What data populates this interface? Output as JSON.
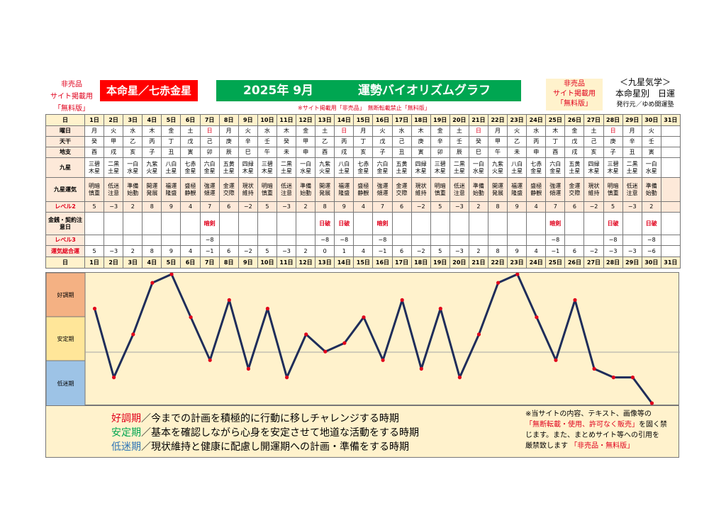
{
  "header": {
    "left_lines": [
      "非売品",
      "サイト掲載用",
      "「無料版」"
    ],
    "honmei": "本命星／七赤金星",
    "month": "2025年 9月",
    "title": "運勢バイオリズムグラフ",
    "right_lines": [
      "非売品",
      "サイト掲載用",
      "「無料版」"
    ],
    "kyusei_title": "＜九星気学＞",
    "kyusei_sub": "本命星別　日運",
    "publisher": "発行元／ゆめ開運塾",
    "notice": "※サイト掲載用「非売品」　無断転載禁止「無料版」"
  },
  "row_labels": {
    "day": "日",
    "weekday": "曜日",
    "tenkan": "天干",
    "chishi": "地支",
    "kyusei": "九星",
    "unki": "九星運気",
    "level2": "レベル2",
    "kinsen": "金銭・契約注意日",
    "level3": "レベル3",
    "total": "運気総合運"
  },
  "days": [
    "1日",
    "2日",
    "3日",
    "4日",
    "5日",
    "6日",
    "7日",
    "8日",
    "9日",
    "10日",
    "11日",
    "12日",
    "13日",
    "14日",
    "15日",
    "16日",
    "17日",
    "18日",
    "19日",
    "20日",
    "21日",
    "22日",
    "23日",
    "24日",
    "25日",
    "26日",
    "27日",
    "28日",
    "29日",
    "30日",
    "31日"
  ],
  "weekday": [
    "月",
    "火",
    "水",
    "木",
    "金",
    "土",
    "日",
    "月",
    "火",
    "水",
    "木",
    "金",
    "土",
    "日",
    "月",
    "火",
    "水",
    "木",
    "金",
    "土",
    "日",
    "月",
    "火",
    "水",
    "木",
    "金",
    "土",
    "日",
    "月",
    "火",
    ""
  ],
  "tenkan": [
    "癸",
    "甲",
    "乙",
    "丙",
    "丁",
    "戊",
    "己",
    "庚",
    "辛",
    "壬",
    "癸",
    "甲",
    "乙",
    "丙",
    "丁",
    "戊",
    "己",
    "庚",
    "辛",
    "壬",
    "癸",
    "甲",
    "乙",
    "丙",
    "丁",
    "戊",
    "己",
    "庚",
    "辛",
    "壬",
    ""
  ],
  "chishi": [
    "酉",
    "戌",
    "亥",
    "子",
    "丑",
    "寅",
    "卯",
    "辰",
    "巳",
    "午",
    "未",
    "申",
    "酉",
    "戌",
    "亥",
    "子",
    "丑",
    "寅",
    "卯",
    "辰",
    "巳",
    "午",
    "未",
    "申",
    "酉",
    "戌",
    "亥",
    "子",
    "丑",
    "寅",
    ""
  ],
  "kyusei": [
    [
      "三碧",
      "木星"
    ],
    [
      "二黒",
      "土星"
    ],
    [
      "一白",
      "水星"
    ],
    [
      "九紫",
      "火星"
    ],
    [
      "八白",
      "土星"
    ],
    [
      "七赤",
      "金星"
    ],
    [
      "六白",
      "金星"
    ],
    [
      "五黄",
      "土星"
    ],
    [
      "四緑",
      "木星"
    ],
    [
      "三碧",
      "木星"
    ],
    [
      "二黒",
      "土星"
    ],
    [
      "一白",
      "水星"
    ],
    [
      "九紫",
      "火星"
    ],
    [
      "八白",
      "土星"
    ],
    [
      "七赤",
      "金星"
    ],
    [
      "六白",
      "金星"
    ],
    [
      "五黄",
      "土星"
    ],
    [
      "四緑",
      "木星"
    ],
    [
      "三碧",
      "木星"
    ],
    [
      "二黒",
      "土星"
    ],
    [
      "一白",
      "水星"
    ],
    [
      "九紫",
      "火星"
    ],
    [
      "八白",
      "土星"
    ],
    [
      "七赤",
      "金星"
    ],
    [
      "六白",
      "金星"
    ],
    [
      "五黄",
      "土星"
    ],
    [
      "四緑",
      "木星"
    ],
    [
      "三碧",
      "木星"
    ],
    [
      "二黒",
      "土星"
    ],
    [
      "一白",
      "水星"
    ],
    [
      "",
      ""
    ]
  ],
  "unki": [
    [
      "明暗",
      "慎重"
    ],
    [
      "低迷",
      "注意"
    ],
    [
      "準備",
      "始動"
    ],
    [
      "開運",
      "発展"
    ],
    [
      "福運",
      "隆盛"
    ],
    [
      "盛極",
      "静観"
    ],
    [
      "強運",
      "傾運"
    ],
    [
      "金運",
      "交際"
    ],
    [
      "現状",
      "維持"
    ],
    [
      "明暗",
      "慎重"
    ],
    [
      "低迷",
      "注意"
    ],
    [
      "準備",
      "始動"
    ],
    [
      "開運",
      "発展"
    ],
    [
      "福運",
      "隆盛"
    ],
    [
      "盛極",
      "静観"
    ],
    [
      "強運",
      "傾運"
    ],
    [
      "金運",
      "交際"
    ],
    [
      "現状",
      "維持"
    ],
    [
      "明暗",
      "慎重"
    ],
    [
      "低迷",
      "注意"
    ],
    [
      "準備",
      "始動"
    ],
    [
      "開運",
      "発展"
    ],
    [
      "福運",
      "隆盛"
    ],
    [
      "盛極",
      "静観"
    ],
    [
      "強運",
      "傾運"
    ],
    [
      "金運",
      "交際"
    ],
    [
      "現状",
      "維持"
    ],
    [
      "明暗",
      "慎重"
    ],
    [
      "低迷",
      "注意"
    ],
    [
      "準備",
      "始動"
    ],
    [
      "",
      ""
    ]
  ],
  "level2": [
    "5",
    "−3",
    "2",
    "8",
    "9",
    "4",
    "7",
    "6",
    "−2",
    "5",
    "−3",
    "2",
    "8",
    "9",
    "4",
    "7",
    "6",
    "−2",
    "5",
    "−3",
    "2",
    "8",
    "9",
    "4",
    "7",
    "6",
    "−2",
    "5",
    "−3",
    "2",
    ""
  ],
  "kinsen": [
    "",
    "",
    "",
    "",
    "",
    "",
    "暗剣",
    "",
    "",
    "",
    "",
    "",
    "日破",
    "日破",
    "",
    "暗剣",
    "",
    "",
    "",
    "",
    "",
    "",
    "",
    "",
    "暗剣",
    "",
    "",
    "日破",
    "",
    "日破",
    ""
  ],
  "level3": [
    "",
    "",
    "",
    "",
    "",
    "",
    "−8",
    "",
    "",
    "",
    "",
    "",
    "−8",
    "−8",
    "",
    "−8",
    "",
    "",
    "",
    "",
    "",
    "",
    "",
    "",
    "−8",
    "",
    "",
    "−8",
    "",
    "−8",
    ""
  ],
  "total": [
    "5",
    "−3",
    "2",
    "8",
    "9",
    "4",
    "−1",
    "6",
    "−2",
    "5",
    "−3",
    "2",
    "0",
    "1",
    "4",
    "−1",
    "6",
    "−2",
    "5",
    "−3",
    "2",
    "8",
    "9",
    "4",
    "−1",
    "6",
    "−2",
    "−3",
    "−3",
    "−6",
    ""
  ],
  "chart_data": {
    "type": "line",
    "x": [
      "1日",
      "2日",
      "3日",
      "4日",
      "5日",
      "6日",
      "7日",
      "8日",
      "9日",
      "10日",
      "11日",
      "12日",
      "13日",
      "14日",
      "15日",
      "16日",
      "17日",
      "18日",
      "19日",
      "20日",
      "21日",
      "22日",
      "23日",
      "24日",
      "25日",
      "26日",
      "27日",
      "28日",
      "29日",
      "30日"
    ],
    "values": [
      5,
      -3,
      2,
      8,
      9,
      4,
      -1,
      6,
      -2,
      5,
      -3,
      2,
      0,
      1,
      4,
      -1,
      6,
      -2,
      5,
      -3,
      2,
      8,
      9,
      4,
      -1,
      6,
      -2,
      -3,
      -3,
      -6
    ],
    "ylim": [
      -6,
      9
    ],
    "bands": [
      "好調期",
      "安定期",
      "低迷期"
    ],
    "line_color": "#1f2d5a",
    "marker_color": "#e0001b"
  },
  "footer": {
    "good_label": "好調期",
    "good_text": "／今までの計画を積極的に行動に移しチャレンジする時期",
    "stable_label": "安定期",
    "stable_text": "／基本を確認しながら心身を安定させて地道な活動をする時期",
    "low_label": "低迷期",
    "low_text": "／現状維持と健康に配慮し開運期への計画・準備をする時期",
    "copy_1": "※当サイトの内容、テキスト、画像等の",
    "copy_2": "「無断転載・使用、許可なく販売」",
    "copy_3": "を固く禁",
    "copy_4": "じます。また、まとめサイト等への引用を",
    "copy_5": "厳禁致します",
    "copy_6": "「非売品・無料版」"
  }
}
